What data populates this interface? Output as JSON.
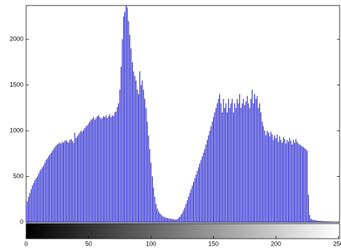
{
  "chart_data": {
    "type": "histogram-stem",
    "color": "#0000c8",
    "colorbar": true,
    "xlim": [
      0,
      251
    ],
    "ylim": [
      0,
      2370
    ],
    "xticks": [
      0,
      50,
      100,
      150,
      200,
      250
    ],
    "yticks": [
      0,
      500,
      1000,
      1500,
      2000
    ],
    "x": [
      0,
      1,
      2,
      3,
      4,
      5,
      6,
      7,
      8,
      9,
      10,
      11,
      12,
      13,
      14,
      15,
      16,
      17,
      18,
      19,
      20,
      21,
      22,
      23,
      24,
      25,
      26,
      27,
      28,
      29,
      30,
      31,
      32,
      33,
      34,
      35,
      36,
      37,
      38,
      39,
      40,
      41,
      42,
      43,
      44,
      45,
      46,
      47,
      48,
      49,
      50,
      51,
      52,
      53,
      54,
      55,
      56,
      57,
      58,
      59,
      60,
      61,
      62,
      63,
      64,
      65,
      66,
      67,
      68,
      69,
      70,
      71,
      72,
      73,
      74,
      75,
      76,
      77,
      78,
      79,
      80,
      81,
      82,
      83,
      84,
      85,
      86,
      87,
      88,
      89,
      90,
      91,
      92,
      93,
      94,
      95,
      96,
      97,
      98,
      99,
      100,
      101,
      102,
      103,
      104,
      105,
      106,
      107,
      108,
      109,
      110,
      111,
      112,
      113,
      114,
      115,
      116,
      117,
      118,
      119,
      120,
      121,
      122,
      123,
      124,
      125,
      126,
      127,
      128,
      129,
      130,
      131,
      132,
      133,
      134,
      135,
      136,
      137,
      138,
      139,
      140,
      141,
      142,
      143,
      144,
      145,
      146,
      147,
      148,
      149,
      150,
      151,
      152,
      153,
      154,
      155,
      156,
      157,
      158,
      159,
      160,
      161,
      162,
      163,
      164,
      165,
      166,
      167,
      168,
      169,
      170,
      171,
      172,
      173,
      174,
      175,
      176,
      177,
      178,
      179,
      180,
      181,
      182,
      183,
      184,
      185,
      186,
      187,
      188,
      189,
      190,
      191,
      192,
      193,
      194,
      195,
      196,
      197,
      198,
      199,
      200,
      201,
      202,
      203,
      204,
      205,
      206,
      207,
      208,
      209,
      210,
      211,
      212,
      213,
      214,
      215,
      216,
      217,
      218,
      219,
      220,
      221,
      222,
      223,
      224,
      225,
      226,
      227,
      228,
      229,
      230,
      231,
      232,
      233,
      234,
      235,
      236,
      237,
      238,
      239,
      240,
      241,
      242,
      243,
      244,
      245,
      246,
      247,
      248,
      249,
      250
    ],
    "values": [
      180,
      230,
      280,
      320,
      360,
      400,
      430,
      460,
      480,
      500,
      530,
      560,
      580,
      600,
      620,
      650,
      680,
      700,
      720,
      740,
      760,
      780,
      800,
      820,
      840,
      850,
      860,
      870,
      860,
      880,
      870,
      890,
      900,
      880,
      870,
      900,
      910,
      890,
      870,
      980,
      920,
      940,
      960,
      980,
      1000,
      990,
      1010,
      1030,
      1050,
      1060,
      1080,
      1100,
      1120,
      1130,
      1150,
      1120,
      1140,
      1160,
      1170,
      1150,
      1130,
      1140,
      1160,
      1150,
      1170,
      1140,
      1160,
      1180,
      1150,
      1170,
      1160,
      1200,
      1210,
      1260,
      1300,
      1450,
      1700,
      2000,
      2250,
      2300,
      2370,
      2350,
      2200,
      2050,
      1900,
      1750,
      1650,
      1600,
      1550,
      1450,
      1400,
      1650,
      1500,
      1550,
      1450,
      1350,
      1250,
      1100,
      950,
      800,
      650,
      500,
      380,
      280,
      200,
      150,
      120,
      100,
      85,
      70,
      60,
      55,
      50,
      45,
      42,
      40,
      38,
      35,
      33,
      30,
      30,
      35,
      45,
      60,
      80,
      100,
      130,
      160,
      200,
      240,
      280,
      320,
      360,
      400,
      440,
      480,
      520,
      560,
      600,
      640,
      680,
      720,
      760,
      800,
      850,
      900,
      950,
      1000,
      1050,
      1100,
      1150,
      1200,
      1250,
      1300,
      1350,
      1400,
      1300,
      1200,
      1350,
      1250,
      1300,
      1200,
      1350,
      1250,
      1300,
      1350,
      1200,
      1300,
      1250,
      1350,
      1300,
      1400,
      1250,
      1300,
      1350,
      1280,
      1320,
      1380,
      1300,
      1250,
      1350,
      1450,
      1300,
      1400,
      1350,
      1380,
      1250,
      1300,
      1200,
      1100,
      1050,
      1000,
      950,
      1000,
      980,
      940,
      990,
      960,
      900,
      950,
      920,
      960,
      880,
      940,
      900,
      870,
      930,
      910,
      860,
      900,
      880,
      920,
      890,
      850,
      900,
      870,
      910,
      880,
      860,
      850,
      840,
      830,
      820,
      810,
      800,
      780,
      300,
      80,
      40,
      30,
      25,
      22,
      20,
      18,
      16,
      15,
      14,
      12,
      11,
      10,
      10,
      9,
      8,
      8,
      7,
      7,
      6,
      6,
      5,
      5,
      5
    ]
  }
}
